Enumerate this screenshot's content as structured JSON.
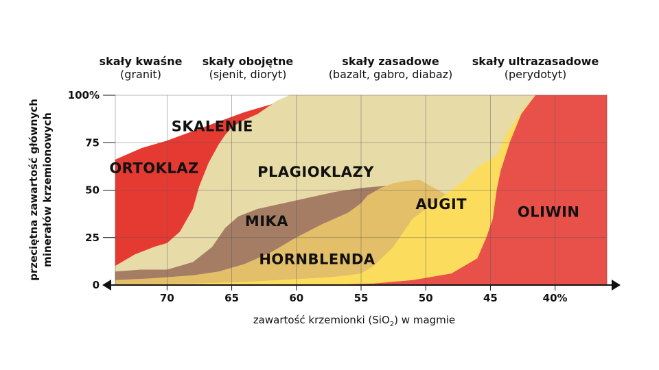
{
  "chart_data": {
    "type": "area",
    "ylabel_line1": "przeciętna zawartość głównych",
    "ylabel_line2": "minerałów krzemionowych",
    "xlabel": "zawartość krzemionki (SiO",
    "xlabel_sub": "2",
    "xlabel_tail": ") w magmie",
    "x_axis": "SiO2 %, decreasing to the right",
    "xlim": [
      74,
      36
    ],
    "ylim": [
      0,
      100
    ],
    "x_ticks": [
      "70",
      "65",
      "60",
      "55",
      "50",
      "45",
      "40%"
    ],
    "y_ticks": [
      "0",
      "25",
      "50",
      "75",
      "100%"
    ],
    "grid": true,
    "rock_categories": [
      {
        "name": "skały kwaśne",
        "example": "(granit)"
      },
      {
        "name": "skały obojętne",
        "example": "(sjenit, dioryt)"
      },
      {
        "name": "skały zasadowe",
        "example": "(bazalt, gabro, diabaz)"
      },
      {
        "name": "skały ultrazasadowe",
        "example": "(perydotyt)"
      }
    ],
    "series": [
      {
        "name": "OLIWIN",
        "color": "#e8504a",
        "x": [
          74,
          57,
          54,
          51,
          48,
          46,
          45.3,
          44.8,
          44.5,
          44.2,
          43.5,
          42.6,
          41.5,
          36
        ],
        "y": [
          0,
          0,
          0.7,
          2.5,
          6,
          14,
          25,
          35,
          50,
          60,
          75,
          90,
          100,
          100
        ]
      },
      {
        "name": "AUGIT",
        "color": "#fbdc5c",
        "x": [
          74,
          68,
          64,
          60,
          57.5,
          56,
          55,
          54,
          52.5,
          51,
          49,
          47,
          46,
          44.5,
          43.7,
          42.5,
          41.5
        ],
        "y": [
          0,
          0.7,
          1.5,
          3,
          4,
          5,
          6,
          10,
          20,
          35,
          45,
          55,
          62,
          68,
          80,
          92,
          100
        ]
      },
      {
        "name": "HORNBLENDA",
        "color": "#e4bf6a",
        "x": [
          74,
          71,
          68,
          66,
          64,
          62,
          60,
          58,
          56,
          55,
          54.5,
          53.5,
          52.5,
          51.5,
          50.5
        ],
        "y": [
          2.5,
          3.5,
          5,
          7,
          11,
          17,
          25,
          32,
          38,
          43,
          47,
          51,
          53.5,
          54.8,
          55.3
        ]
      },
      {
        "name": "MIKA",
        "color": "#a57d65",
        "x": [
          74,
          72,
          70,
          68,
          66.5,
          65.5,
          64.5,
          63,
          61,
          59,
          57,
          55,
          52.5,
          50.5
        ],
        "y": [
          7,
          8,
          8,
          12,
          20,
          30,
          36,
          40,
          43,
          46,
          49,
          51,
          52.5,
          55.3
        ]
      },
      {
        "name": "PLAGIOKLAZY",
        "color": "#e7dba8",
        "x": [
          74,
          72.5,
          71,
          70,
          69,
          68,
          67.5,
          66.8,
          66,
          65.5,
          65,
          64,
          63,
          61.5,
          60.5,
          36
        ],
        "y": [
          10,
          16,
          20,
          22,
          28,
          40,
          52,
          64,
          74,
          79,
          83,
          87,
          90,
          97,
          100,
          100
        ]
      },
      {
        "name": "ORTOKLAZ",
        "color": "#e53a32",
        "x": [
          74,
          72,
          70,
          68,
          66,
          64,
          62,
          61,
          60.5,
          36
        ],
        "y": [
          66,
          72,
          76,
          81,
          86,
          91,
          95,
          98,
          100,
          100
        ]
      }
    ],
    "labels": [
      {
        "text": "SKALENIE",
        "x": 66.5,
        "y": 81
      },
      {
        "text": "ORTOKLAZ",
        "x": 71,
        "y": 59
      },
      {
        "text": "PLAGIOKLAZY",
        "x": 58.5,
        "y": 57
      },
      {
        "text": "MIKA",
        "x": 62.3,
        "y": 31
      },
      {
        "text": "HORNBLENDA",
        "x": 58.4,
        "y": 11
      },
      {
        "text": "AUGIT",
        "x": 48.8,
        "y": 40
      },
      {
        "text": "OLIWIN",
        "x": 40.5,
        "y": 36
      }
    ]
  }
}
